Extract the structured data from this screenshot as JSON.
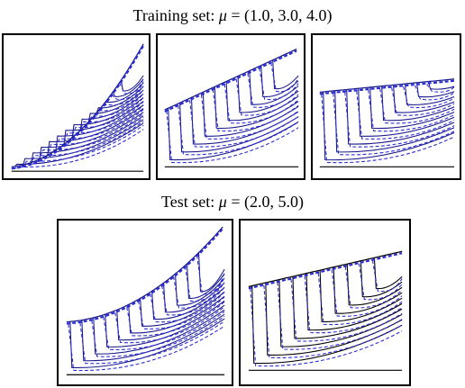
{
  "figure": {
    "training_heading": {
      "prefix": "Training  set: ",
      "mu_symbol": "μ",
      "suffix": " = (1.0, 3.0, 4.0)"
    },
    "test_heading": {
      "prefix": "Test set: ",
      "mu_symbol": "μ",
      "suffix": " = (2.0, 5.0)"
    }
  },
  "chart_data": [
    {
      "type": "line",
      "group": "training",
      "mu": 1.0,
      "envelope": "convex-rising",
      "n_curves": 14,
      "series": [
        {
          "name": "",
          "style": "solid",
          "color": "#1a1a8c"
        },
        {
          "name": "",
          "style": "dashed",
          "color": "#2b2bd6"
        }
      ]
    },
    {
      "type": "line",
      "group": "training",
      "mu": 3.0,
      "envelope": "shock-front-rising",
      "n_curves": 10,
      "series": [
        {
          "name": "",
          "style": "solid",
          "color": "#1a1a8c"
        },
        {
          "name": "",
          "style": "dashed",
          "color": "#2b2bd6"
        }
      ]
    },
    {
      "type": "line",
      "group": "training",
      "mu": 4.0,
      "envelope": "shock-front-flat",
      "n_curves": 10,
      "series": [
        {
          "name": "",
          "style": "solid",
          "color": "#1a1a8c"
        },
        {
          "name": "",
          "style": "dashed",
          "color": "#2b2bd6"
        }
      ]
    },
    {
      "type": "line",
      "group": "test",
      "mu": 2.0,
      "envelope": "convex-rising",
      "n_curves": 12,
      "series": [
        {
          "name": "",
          "style": "solid",
          "color": "#1a1a8c"
        },
        {
          "name": "",
          "style": "dashed",
          "color": "#2b2bd6"
        }
      ]
    },
    {
      "type": "line",
      "group": "test",
      "mu": 5.0,
      "envelope": "shock-front-flat",
      "n_curves": 10,
      "series": [
        {
          "name": "",
          "style": "solid",
          "color": "#000000"
        },
        {
          "name": "",
          "style": "dashed",
          "color": "#2b2bd6"
        }
      ]
    }
  ]
}
